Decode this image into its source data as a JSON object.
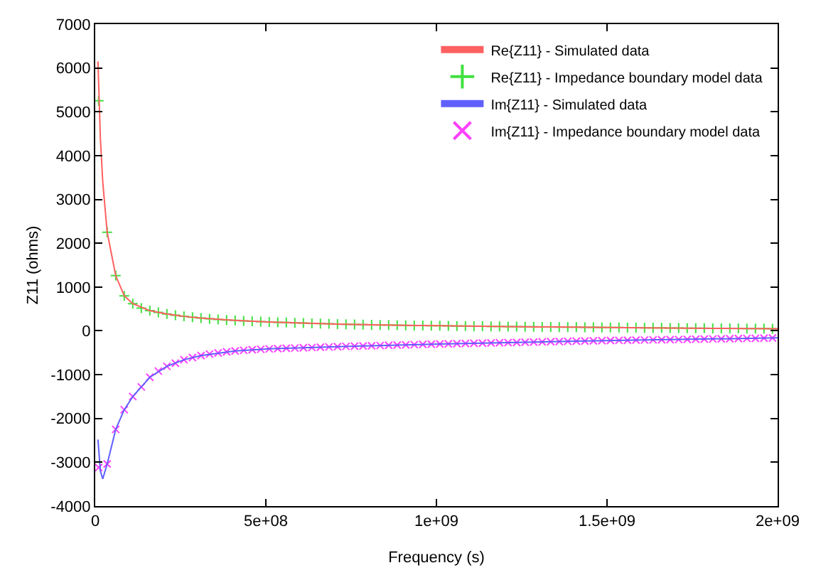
{
  "chart_data": {
    "type": "line",
    "xlabel": "Frequency (s)",
    "ylabel": "Z11 (ohms)",
    "xlim": [
      0,
      2000000000
    ],
    "xticks": [
      0,
      {
        "value": 500000000,
        "label": "5e+08"
      },
      {
        "value": 1000000000,
        "label": "1e+09"
      },
      {
        "value": 1500000000,
        "label": "1.5e+09"
      },
      {
        "value": 2000000000,
        "label": "2e+09"
      }
    ],
    "ylim": [
      -4000,
      7000
    ],
    "yticks": [
      -4000,
      -3000,
      -2000,
      -1000,
      0,
      1000,
      2000,
      3000,
      4000,
      5000,
      6000,
      7000
    ],
    "legend": "top right",
    "series": [
      {
        "name": "Re{Z11} - Simulated data",
        "marker": "none",
        "color": "#ff6060",
        "x": [
          8000000,
          15000000,
          22000000,
          35000000,
          60000000,
          85000000,
          110000000,
          160000000,
          210000000,
          260000000,
          310000000,
          410000000,
          510000000,
          610000000,
          710000000,
          810000000,
          910000000,
          1010000000,
          1210000000,
          1410000000,
          1610000000,
          1810000000,
          2000000000
        ],
        "values": [
          6150,
          4400,
          3400,
          2250,
          1260,
          800,
          620,
          460,
          385,
          330,
          290,
          238,
          200,
          176,
          155,
          138,
          126,
          115,
          98,
          83,
          70,
          58,
          48
        ]
      },
      {
        "name": "Re{Z11} - Impedance boundary model data",
        "type": "scatter",
        "marker": "cross",
        "color": "#40e040",
        "x": [
          10000000,
          35000000,
          60000000,
          85000000,
          110000000,
          135000000,
          160000000,
          185000000,
          210000000,
          235000000,
          260000000,
          285000000,
          310000000,
          335000000,
          360000000,
          385000000,
          410000000,
          435000000,
          460000000,
          485000000,
          510000000,
          535000000,
          560000000,
          585000000,
          610000000,
          635000000,
          660000000,
          685000000,
          710000000,
          735000000,
          760000000,
          785000000,
          810000000,
          835000000,
          860000000,
          885000000,
          910000000,
          935000000,
          960000000,
          985000000,
          1010000000,
          1035000000,
          1060000000,
          1085000000,
          1110000000,
          1135000000,
          1160000000,
          1185000000,
          1210000000,
          1235000000,
          1260000000,
          1285000000,
          1310000000,
          1335000000,
          1360000000,
          1385000000,
          1410000000,
          1435000000,
          1460000000,
          1485000000,
          1510000000,
          1535000000,
          1560000000,
          1585000000,
          1610000000,
          1635000000,
          1660000000,
          1685000000,
          1710000000,
          1735000000,
          1760000000,
          1785000000,
          1810000000,
          1835000000,
          1860000000,
          1885000000,
          1910000000,
          1935000000,
          1960000000,
          1985000000
        ],
        "values": [
          5250,
          2250,
          1260,
          800,
          620,
          520,
          460,
          420,
          385,
          355,
          330,
          310,
          290,
          275,
          260,
          248,
          238,
          228,
          218,
          210,
          200,
          195,
          188,
          182,
          176,
          170,
          165,
          160,
          155,
          150,
          146,
          142,
          138,
          135,
          132,
          129,
          126,
          123,
          120,
          118,
          115,
          113,
          110,
          108,
          106,
          104,
          102,
          100,
          98,
          96,
          94,
          92,
          90,
          88,
          86,
          85,
          83,
          81,
          80,
          78,
          76,
          75,
          73,
          72,
          70,
          68,
          67,
          65,
          64,
          62,
          61,
          60,
          58,
          57,
          56,
          54,
          53,
          52,
          51,
          50
        ]
      },
      {
        "name": "Im{Z11} - Simulated data",
        "marker": "none",
        "color": "#6060ff",
        "x": [
          8000000,
          15000000,
          22000000,
          35000000,
          60000000,
          85000000,
          110000000,
          160000000,
          210000000,
          260000000,
          310000000,
          410000000,
          510000000,
          610000000,
          710000000,
          810000000,
          910000000,
          1010000000,
          1210000000,
          1410000000,
          1610000000,
          1810000000,
          2000000000
        ],
        "values": [
          -2480,
          -3200,
          -3380,
          -3040,
          -2250,
          -1800,
          -1500,
          -1060,
          -810,
          -660,
          -565,
          -460,
          -412,
          -386,
          -362,
          -340,
          -320,
          -300,
          -268,
          -236,
          -209,
          -185,
          -160
        ]
      },
      {
        "name": "Im{Z11} - Impedance boundary model data",
        "type": "scatter",
        "marker": "x",
        "color": "#ff40ff",
        "x": [
          10000000,
          35000000,
          60000000,
          85000000,
          110000000,
          135000000,
          160000000,
          185000000,
          210000000,
          235000000,
          260000000,
          285000000,
          310000000,
          335000000,
          360000000,
          385000000,
          410000000,
          435000000,
          460000000,
          485000000,
          510000000,
          535000000,
          560000000,
          585000000,
          610000000,
          635000000,
          660000000,
          685000000,
          710000000,
          735000000,
          760000000,
          785000000,
          810000000,
          835000000,
          860000000,
          885000000,
          910000000,
          935000000,
          960000000,
          985000000,
          1010000000,
          1035000000,
          1060000000,
          1085000000,
          1110000000,
          1135000000,
          1160000000,
          1185000000,
          1210000000,
          1235000000,
          1260000000,
          1285000000,
          1310000000,
          1335000000,
          1360000000,
          1385000000,
          1410000000,
          1435000000,
          1460000000,
          1485000000,
          1510000000,
          1535000000,
          1560000000,
          1585000000,
          1610000000,
          1635000000,
          1660000000,
          1685000000,
          1710000000,
          1735000000,
          1760000000,
          1785000000,
          1810000000,
          1835000000,
          1860000000,
          1885000000,
          1910000000,
          1935000000,
          1960000000,
          1985000000
        ],
        "values": [
          -3120,
          -3040,
          -2250,
          -1800,
          -1500,
          -1280,
          -1060,
          -920,
          -810,
          -740,
          -660,
          -610,
          -565,
          -530,
          -505,
          -480,
          -460,
          -445,
          -430,
          -420,
          -412,
          -405,
          -398,
          -392,
          -386,
          -380,
          -374,
          -368,
          -362,
          -356,
          -350,
          -345,
          -340,
          -335,
          -330,
          -325,
          -320,
          -315,
          -310,
          -305,
          -300,
          -296,
          -292,
          -288,
          -284,
          -280,
          -276,
          -272,
          -268,
          -264,
          -260,
          -256,
          -252,
          -248,
          -244,
          -240,
          -236,
          -232,
          -228,
          -224,
          -221,
          -218,
          -215,
          -212,
          -209,
          -206,
          -203,
          -200,
          -197,
          -194,
          -191,
          -188,
          -185,
          -182,
          -179,
          -176,
          -173,
          -170,
          -166,
          -163
        ]
      }
    ]
  }
}
